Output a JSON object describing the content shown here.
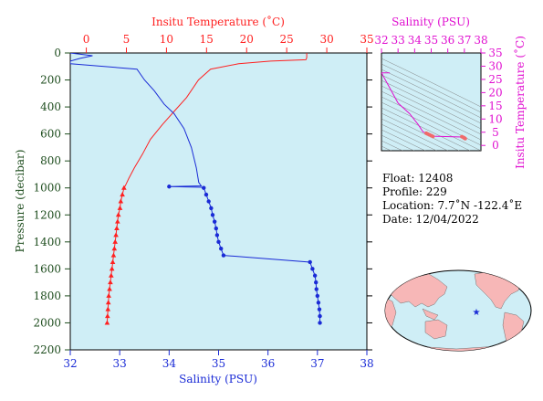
{
  "colors": {
    "plot_bg": "#cfeef6",
    "temperature": "#ff2020",
    "salinity": "#1a2bd6",
    "ts_diagram": "#e010d0",
    "axis_left": "#1e4d1e",
    "map_water": "#cfeef6",
    "map_land": "#f7b7b7"
  },
  "chart_data": [
    {
      "type": "line",
      "title": "",
      "ylabel": "Pressure (decibar)",
      "ylim": [
        2200,
        0
      ],
      "yticks": [
        0,
        200,
        400,
        600,
        800,
        1000,
        1200,
        1400,
        1600,
        1800,
        2000,
        2200
      ],
      "x_axes": {
        "top": {
          "label": "Insitu Temperature (˚C)",
          "range": [
            -2,
            35
          ],
          "ticks": [
            0,
            5,
            10,
            15,
            20,
            25,
            30,
            35
          ]
        },
        "bottom": {
          "label": "Salinity (PSU)",
          "range": [
            32,
            38
          ],
          "ticks": [
            32,
            33,
            34,
            35,
            36,
            37,
            38
          ]
        }
      },
      "series": [
        {
          "name": "Temperature",
          "axis": "top",
          "points": [
            [
              27.5,
              0
            ],
            [
              27.5,
              35
            ],
            [
              27.4,
              50
            ],
            [
              23,
              60
            ],
            [
              19,
              80
            ],
            [
              15.5,
              120
            ],
            [
              14,
              200
            ],
            [
              12.5,
              330
            ],
            [
              11,
              430
            ],
            [
              9.5,
              530
            ],
            [
              8,
              640
            ],
            [
              7,
              750
            ],
            [
              6,
              850
            ],
            [
              5.3,
              930
            ],
            [
              4.9,
              980
            ]
          ],
          "sampled": [
            [
              4.7,
              1000
            ],
            [
              4.5,
              1050
            ],
            [
              4.3,
              1100
            ],
            [
              4.2,
              1150
            ],
            [
              4.0,
              1200
            ],
            [
              3.9,
              1250
            ],
            [
              3.8,
              1300
            ],
            [
              3.7,
              1350
            ],
            [
              3.6,
              1400
            ],
            [
              3.5,
              1450
            ],
            [
              3.4,
              1500
            ],
            [
              3.3,
              1550
            ],
            [
              3.2,
              1600
            ],
            [
              3.1,
              1650
            ],
            [
              3.0,
              1700
            ],
            [
              2.9,
              1750
            ],
            [
              2.8,
              1800
            ],
            [
              2.75,
              1850
            ],
            [
              2.7,
              1900
            ],
            [
              2.65,
              1950
            ],
            [
              2.6,
              2000
            ]
          ]
        },
        {
          "name": "Salinity",
          "axis": "bottom",
          "points": [
            [
              32.0,
              0
            ],
            [
              32.45,
              20
            ],
            [
              32.2,
              40
            ],
            [
              32.0,
              60
            ],
            [
              32.0,
              80
            ],
            [
              33.35,
              120
            ],
            [
              33.5,
              200
            ],
            [
              33.7,
              280
            ],
            [
              33.9,
              380
            ],
            [
              34.1,
              450
            ],
            [
              34.3,
              560
            ],
            [
              34.45,
              700
            ],
            [
              34.55,
              850
            ],
            [
              34.6,
              960
            ],
            [
              34.65,
              985
            ],
            [
              34.0,
              990
            ],
            [
              34.65,
              995
            ]
          ],
          "sampled": [
            [
              34.7,
              1000
            ],
            [
              34.75,
              1050
            ],
            [
              34.8,
              1100
            ],
            [
              34.85,
              1150
            ],
            [
              34.88,
              1200
            ],
            [
              34.92,
              1250
            ],
            [
              34.95,
              1300
            ],
            [
              34.97,
              1350
            ],
            [
              35.0,
              1400
            ],
            [
              35.05,
              1450
            ],
            [
              35.1,
              1500
            ],
            [
              36.85,
              1550
            ],
            [
              36.9,
              1600
            ],
            [
              36.95,
              1650
            ],
            [
              36.97,
              1700
            ],
            [
              36.98,
              1750
            ],
            [
              37.0,
              1800
            ],
            [
              37.02,
              1850
            ],
            [
              37.04,
              1900
            ],
            [
              37.05,
              1950
            ],
            [
              37.05,
              2000
            ]
          ]
        }
      ]
    },
    {
      "type": "line",
      "title": "",
      "xlabel": "Salinity (PSU)",
      "ylabel": "Insitu Temperature (˚C)",
      "xlim": [
        32,
        38
      ],
      "ylim": [
        -2,
        35
      ],
      "xticks": [
        32,
        33,
        34,
        35,
        36,
        37,
        38
      ],
      "yticks": [
        0,
        5,
        10,
        15,
        20,
        25,
        30,
        35
      ],
      "series": [
        {
          "points": [
            [
              32.5,
              27.5
            ],
            [
              32.0,
              27.5
            ],
            [
              33.0,
              16
            ],
            [
              33.7,
              12
            ],
            [
              34.2,
              8
            ],
            [
              34.5,
              5.2
            ],
            [
              34.7,
              4.6
            ],
            [
              35.1,
              3.5
            ],
            [
              36.9,
              3.2
            ],
            [
              37.05,
              2.6
            ]
          ],
          "markers": [
            [
              34.7,
              4.6
            ],
            [
              34.8,
              4.3
            ],
            [
              34.9,
              4.0
            ],
            [
              35.0,
              3.7
            ],
            [
              35.1,
              3.4
            ],
            [
              36.85,
              3.3
            ],
            [
              36.95,
              3.0
            ],
            [
              37.0,
              2.8
            ],
            [
              37.05,
              2.6
            ]
          ]
        }
      ]
    }
  ],
  "info": {
    "float": "Float:  12408",
    "profile": "Profile:  229",
    "location": "Location:  7.7˚N  -122.4˚E",
    "date": "Date:  12/04/2022"
  },
  "map": {
    "float_marker": "star-icon"
  }
}
